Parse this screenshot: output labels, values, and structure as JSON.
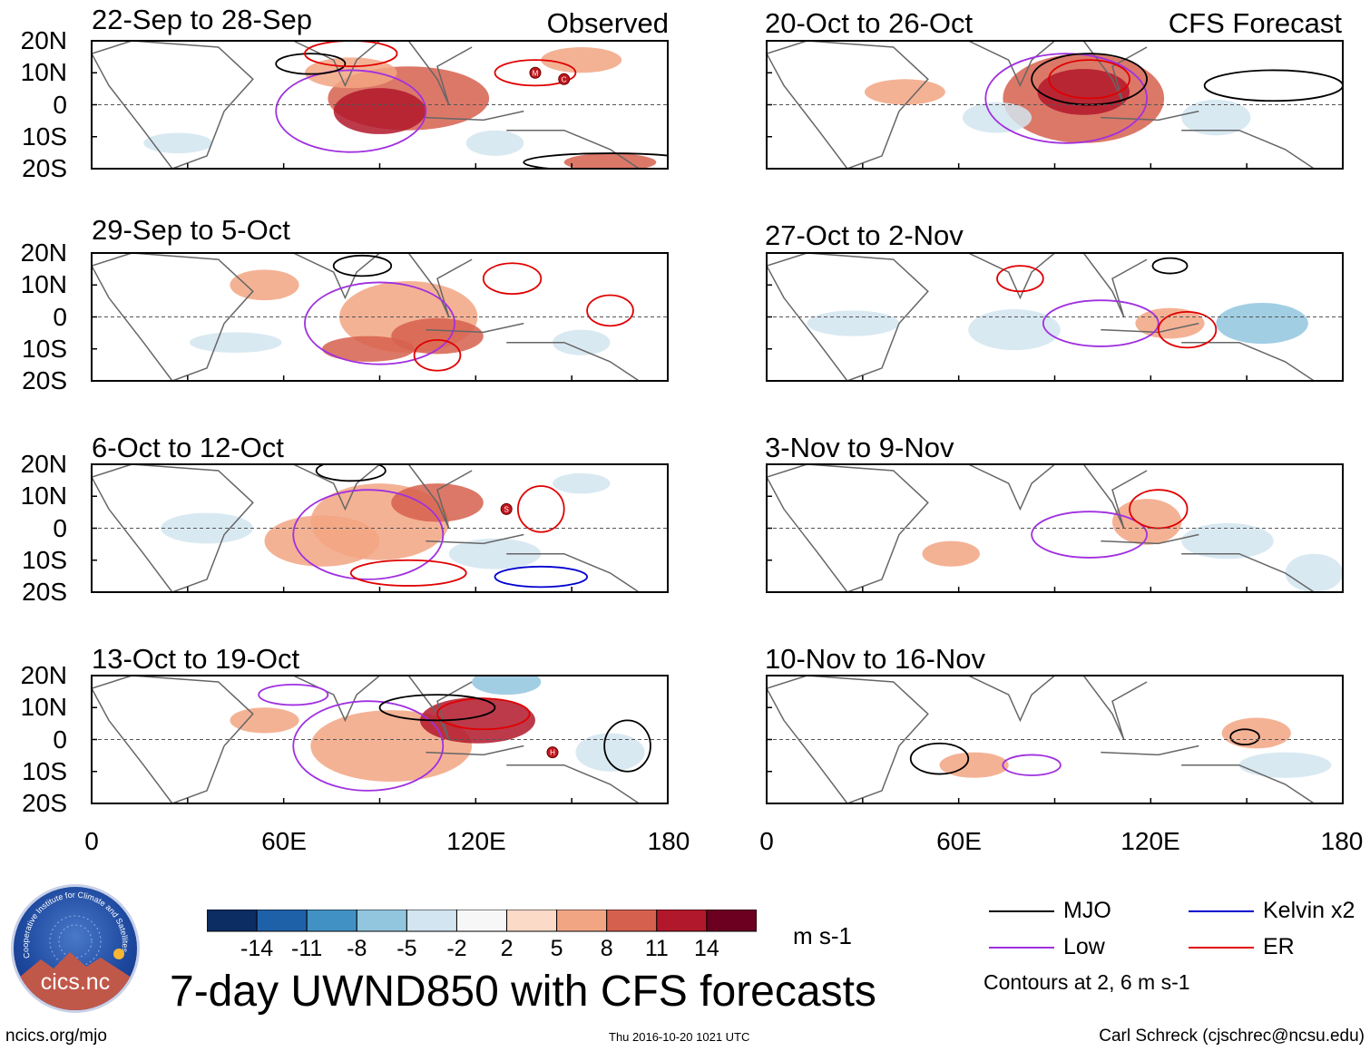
{
  "panels": [
    {
      "id": "p1",
      "title": "22-Sep to 28-Sep",
      "tag": "Observed"
    },
    {
      "id": "p2",
      "title": "29-Sep to 5-Oct",
      "tag": ""
    },
    {
      "id": "p3",
      "title": "6-Oct to 12-Oct",
      "tag": ""
    },
    {
      "id": "p4",
      "title": "13-Oct to 19-Oct",
      "tag": ""
    },
    {
      "id": "p5",
      "title": "20-Oct to 26-Oct",
      "tag": "CFS Forecast"
    },
    {
      "id": "p6",
      "title": "27-Oct to 2-Nov",
      "tag": ""
    },
    {
      "id": "p7",
      "title": "3-Nov to 9-Nov",
      "tag": ""
    },
    {
      "id": "p8",
      "title": "10-Nov to 16-Nov",
      "tag": ""
    }
  ],
  "lat_labels": [
    "20N",
    "10N",
    "0",
    "10S",
    "20S"
  ],
  "lon_labels": [
    "0",
    "60E",
    "120E",
    "180"
  ],
  "storm_markers": {
    "p1": [
      "M",
      "C"
    ],
    "p3": [
      "S"
    ],
    "p4": [
      "H"
    ]
  },
  "colorbar": {
    "ticks": [
      "-14",
      "-11",
      "-8",
      "-5",
      "-2",
      "2",
      "5",
      "8",
      "11",
      "14"
    ],
    "colors": [
      "#0b2d63",
      "#1f61a8",
      "#4291c5",
      "#92c6df",
      "#d2e5f0",
      "#f7f7f7",
      "#fbdac8",
      "#f2a583",
      "#d6604e",
      "#b2182b",
      "#6b0020"
    ],
    "units": "m s-1"
  },
  "legend": {
    "items": [
      {
        "label": "MJO",
        "color": "#000000"
      },
      {
        "label": "Kelvin x2",
        "color": "#0000d0"
      },
      {
        "label": "Low",
        "color": "#a030e0"
      },
      {
        "label": "ER",
        "color": "#e00000"
      }
    ],
    "note": "Contours at 2, 6 m s-1"
  },
  "title": "7-day UWND850 with CFS forecasts",
  "logo_text": "cics.nc",
  "logo_ring_text": "Cooperative Institute for Climate and Satellites",
  "footer": {
    "left": "ncics.org/mjo",
    "center": "Thu 2016-10-20 1021 UTC",
    "right": "Carl Schreck (cjschrec@ncsu.edu)"
  }
}
